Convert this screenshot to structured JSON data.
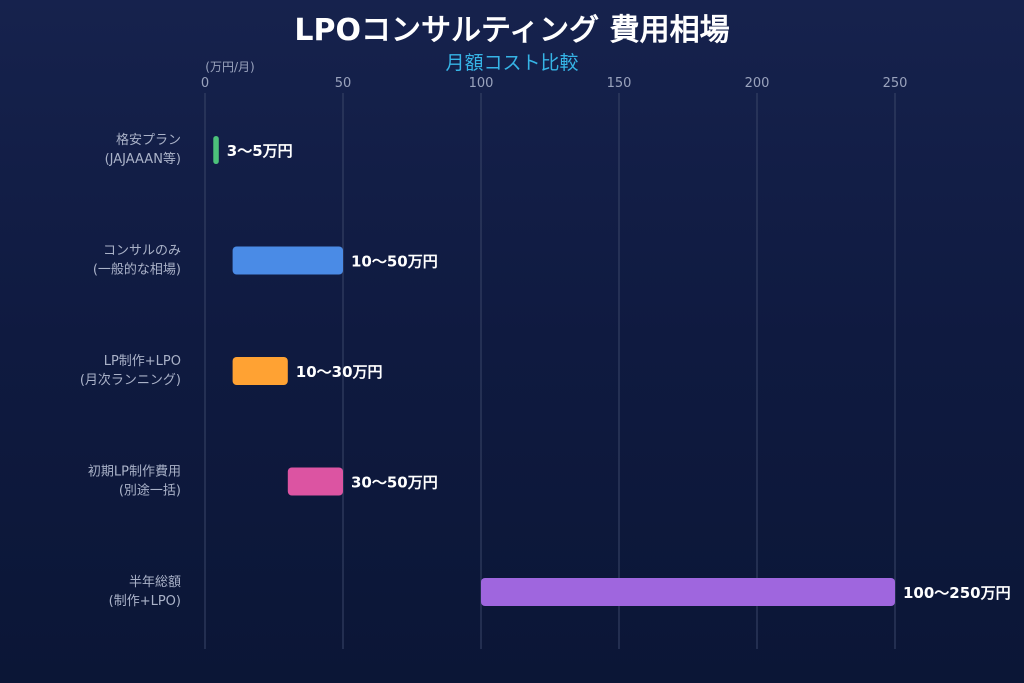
{
  "chart_data": {
    "type": "bar",
    "orientation": "horizontal",
    "subtype": "floating-range",
    "title": "LPOコンサルティング 費用相場",
    "subtitle": "月額コスト比較",
    "unit_label": "(万円/月)",
    "xlim": [
      0,
      270
    ],
    "xticks": [
      0,
      50,
      100,
      150,
      200,
      250
    ],
    "grid": true,
    "categories": [
      [
        "格安プラン",
        "(JAJAAAN等)"
      ],
      [
        "コンサルのみ",
        "(一般的な相場)"
      ],
      [
        "LP制作+LPO",
        "(月次ランニング)"
      ],
      [
        "初期LP制作費用",
        "(別途一括)"
      ],
      [
        "半年総額",
        "(制作+LPO)"
      ]
    ],
    "ranges": [
      [
        3,
        5
      ],
      [
        10,
        50
      ],
      [
        10,
        30
      ],
      [
        30,
        50
      ],
      [
        100,
        250
      ]
    ],
    "data_labels": [
      "3〜5万円",
      "10〜50万円",
      "10〜30万円",
      "30〜50万円",
      "100〜250万円"
    ],
    "colors": [
      "#4cc27a",
      "#4a8be6",
      "#ffa233",
      "#dc54a2",
      "#9f66de"
    ]
  },
  "colors": {
    "title": "#ffffff",
    "subtitle": "#36b4e6",
    "tick": "#9aa3bd",
    "category": "#aab2c8",
    "grid": "#3a4668"
  }
}
